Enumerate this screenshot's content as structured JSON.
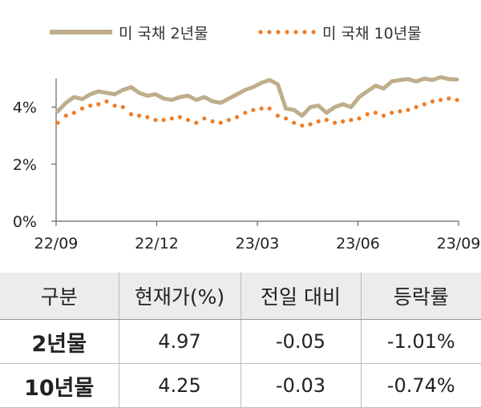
{
  "chart_data": {
    "type": "line",
    "x_ticks": [
      "22/09",
      "22/12",
      "23/03",
      "23/06",
      "23/09"
    ],
    "y_ticks": [
      "0%",
      "2%",
      "4%"
    ],
    "ylim": [
      0,
      5
    ],
    "grid": false,
    "legend_position": "top",
    "series": [
      {
        "name": "미 국채 2년물",
        "style": "solid",
        "color": "#bfad8c",
        "values": [
          3.85,
          4.15,
          4.35,
          4.28,
          4.45,
          4.55,
          4.5,
          4.45,
          4.6,
          4.7,
          4.5,
          4.4,
          4.45,
          4.3,
          4.25,
          4.35,
          4.4,
          4.25,
          4.35,
          4.2,
          4.15,
          4.3,
          4.45,
          4.6,
          4.7,
          4.85,
          4.95,
          4.8,
          3.95,
          3.9,
          3.7,
          4.0,
          4.05,
          3.8,
          4.0,
          4.1,
          4.0,
          4.35,
          4.55,
          4.75,
          4.65,
          4.9,
          4.95,
          4.98,
          4.9,
          5.0,
          4.95,
          5.05,
          4.98,
          4.97
        ]
      },
      {
        "name": "미 국채 10년물",
        "style": "dotted",
        "color": "#f07d28",
        "values": [
          3.45,
          3.7,
          3.8,
          3.95,
          4.05,
          4.1,
          4.2,
          4.05,
          4.0,
          3.75,
          3.7,
          3.65,
          3.55,
          3.55,
          3.6,
          3.65,
          3.55,
          3.45,
          3.6,
          3.5,
          3.45,
          3.55,
          3.65,
          3.8,
          3.9,
          3.95,
          3.95,
          3.7,
          3.6,
          3.45,
          3.35,
          3.4,
          3.5,
          3.55,
          3.45,
          3.5,
          3.55,
          3.6,
          3.75,
          3.8,
          3.7,
          3.8,
          3.85,
          3.9,
          4.0,
          4.1,
          4.2,
          4.25,
          4.3,
          4.25
        ]
      }
    ]
  },
  "table": {
    "headers": [
      "구분",
      "현재가(%)",
      "전일 대비",
      "등락률"
    ],
    "rows": [
      [
        "2년물",
        "4.97",
        "-0.05",
        "-1.01%"
      ],
      [
        "10년물",
        "4.25",
        "-0.03",
        "-0.74%"
      ]
    ]
  }
}
